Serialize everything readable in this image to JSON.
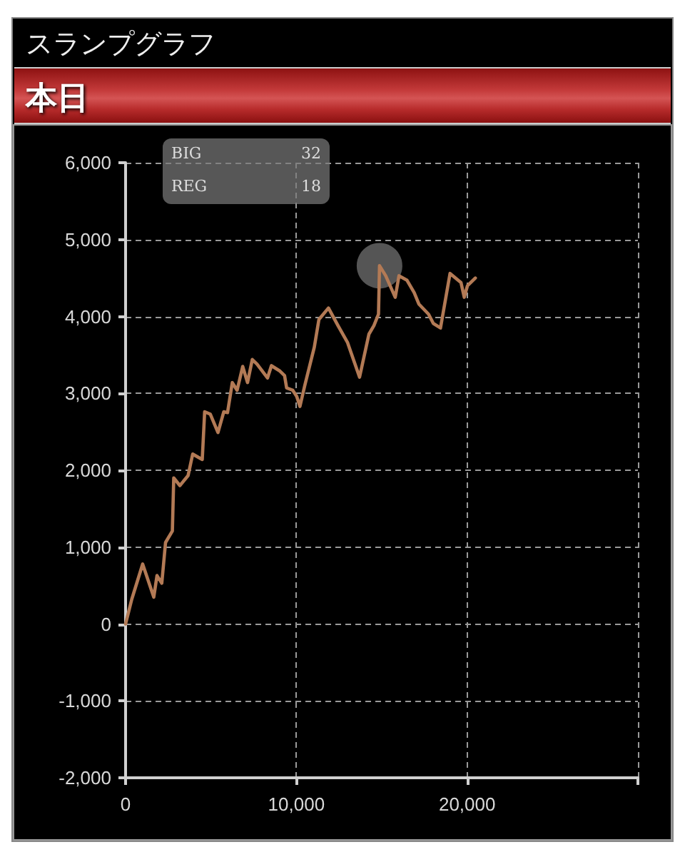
{
  "chart_data": {
    "type": "line",
    "title": "スランプグラフ",
    "subtitle": "本日",
    "annotations": [
      "BIG",
      "32",
      "REG",
      "18"
    ],
    "series": [
      {
        "color": "#b37a55",
        "marker": "none",
        "line_style": "solid",
        "x": [
          0,
          360,
          1000,
          1650,
          1840,
          2120,
          2340,
          2740,
          2820,
          3180,
          3660,
          3930,
          4490,
          4630,
          4960,
          5410,
          5750,
          5970,
          6250,
          6530,
          6860,
          7140,
          7420,
          7700,
          8310,
          8540,
          9040,
          9310,
          9430,
          9790,
          10020,
          10210,
          10490,
          11050,
          11320,
          11880,
          12440,
          13000,
          13700,
          14250,
          14540,
          14810,
          14870,
          15230,
          15790,
          16010,
          16480,
          16900,
          17180,
          17740,
          18020,
          18440,
          19000,
          19640,
          19830,
          20020,
          20480
        ],
        "values": [
          0,
          320,
          780,
          350,
          630,
          530,
          1060,
          1210,
          1900,
          1800,
          1930,
          2210,
          2140,
          2760,
          2730,
          2490,
          2760,
          2750,
          3140,
          3040,
          3350,
          3140,
          3440,
          3380,
          3200,
          3360,
          3290,
          3230,
          3070,
          3040,
          2960,
          2830,
          3100,
          3600,
          3960,
          4110,
          3880,
          3660,
          3210,
          3770,
          3880,
          4030,
          4660,
          4530,
          4250,
          4530,
          4470,
          4310,
          4160,
          4030,
          3910,
          3850,
          4560,
          4440,
          4250,
          4400,
          4500
        ]
      },
      {
        "type": "scatter",
        "color": "#555555",
        "marker": "circle",
        "x": [
          14870
        ],
        "values": [
          4660
        ]
      }
    ],
    "xlim": [
      0,
      30000
    ],
    "xticks": [
      0,
      {
        "value": 10000,
        "label": "10,000"
      },
      {
        "value": 20000,
        "label": "20,000"
      },
      {
        "value": 30000,
        "label": null
      }
    ],
    "ylim": [
      -2000,
      6000
    ],
    "yticks": [
      {
        "value": -2000,
        "label": "-2,000"
      },
      {
        "value": -1000,
        "label": "-1,000"
      },
      0,
      {
        "value": 1000,
        "label": "1,000"
      },
      {
        "value": 2000,
        "label": "2,000"
      },
      {
        "value": 3000,
        "label": "3,000"
      },
      {
        "value": 4000,
        "label": "4,000"
      },
      {
        "value": 5000,
        "label": "5,000"
      },
      {
        "value": 6000,
        "label": "6,000"
      }
    ],
    "grid": true
  }
}
